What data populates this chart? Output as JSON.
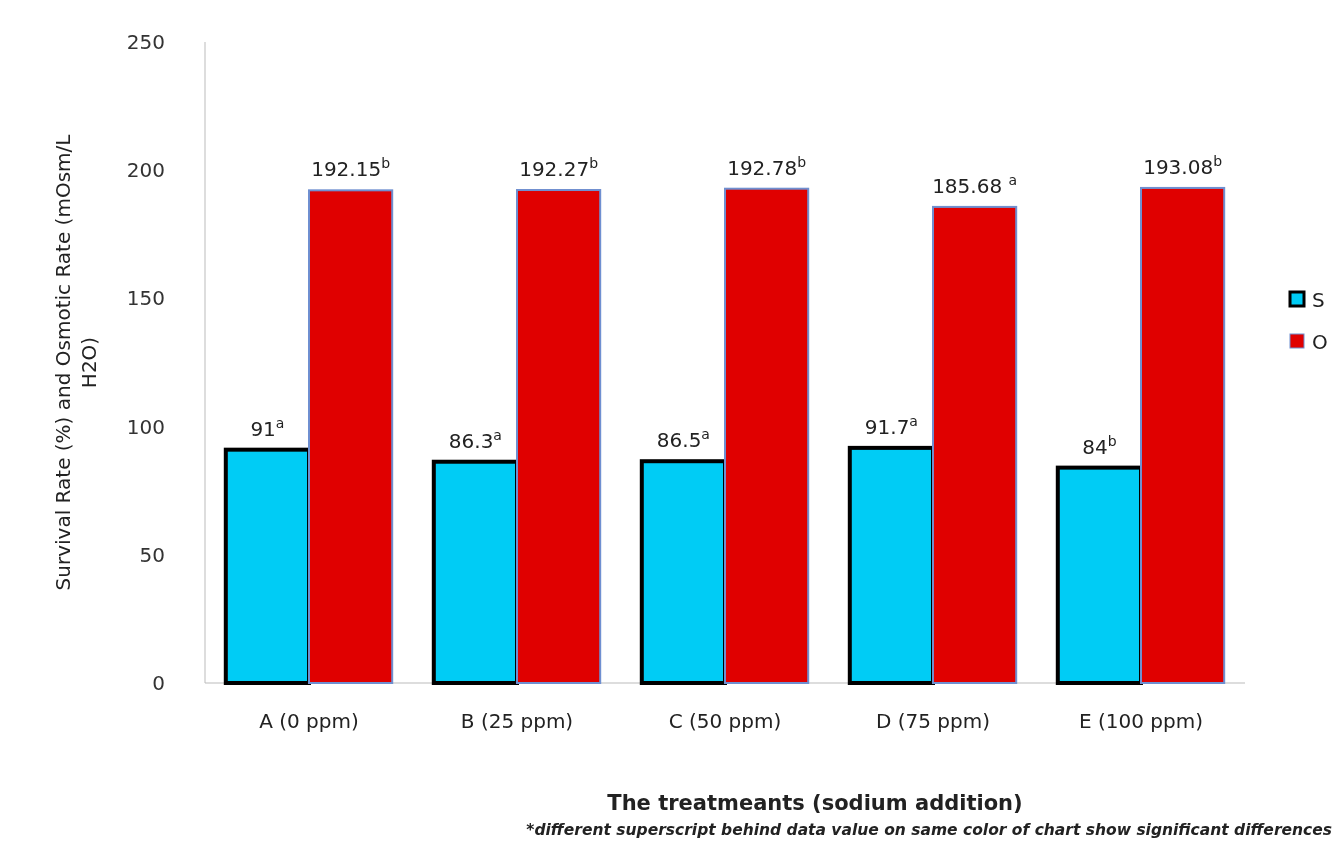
{
  "chart_data": {
    "type": "bar",
    "xlabel": "The treatmeants  (sodium addition)",
    "ylabel": "Survival Rate (%) and Osmotic Rate (mOsm/L H2O)",
    "categories": [
      "A (0 ppm)",
      "B (25 ppm)",
      "C (50 ppm)",
      "D (75 ppm)",
      "E (100 ppm)"
    ],
    "series": [
      {
        "name": "S",
        "color": "#00ccf5",
        "values": [
          91,
          86.3,
          86.5,
          91.7,
          84
        ],
        "value_labels": [
          "91$^{a}$",
          "86.3$^{a}$",
          "86.5$^{a}$",
          "91.7$^{a}$",
          "84$^{b}$"
        ]
      },
      {
        "name": "O",
        "color": "#e00000",
        "values": [
          192.15,
          192.27,
          192.78,
          185.68,
          193.08
        ],
        "value_labels": [
          "192.15$^{b}$",
          "192.27$^{b}$",
          "192.78$^{b}$",
          "185.68 $^{a}$",
          "193.08$^{b}$"
        ]
      }
    ],
    "ylim": [
      0,
      250
    ],
    "yticks": [
      0,
      50,
      100,
      150,
      200,
      250
    ],
    "legend": "right",
    "annotations": [
      "*different superscript behind data value on same color of chart show significant differences"
    ]
  }
}
